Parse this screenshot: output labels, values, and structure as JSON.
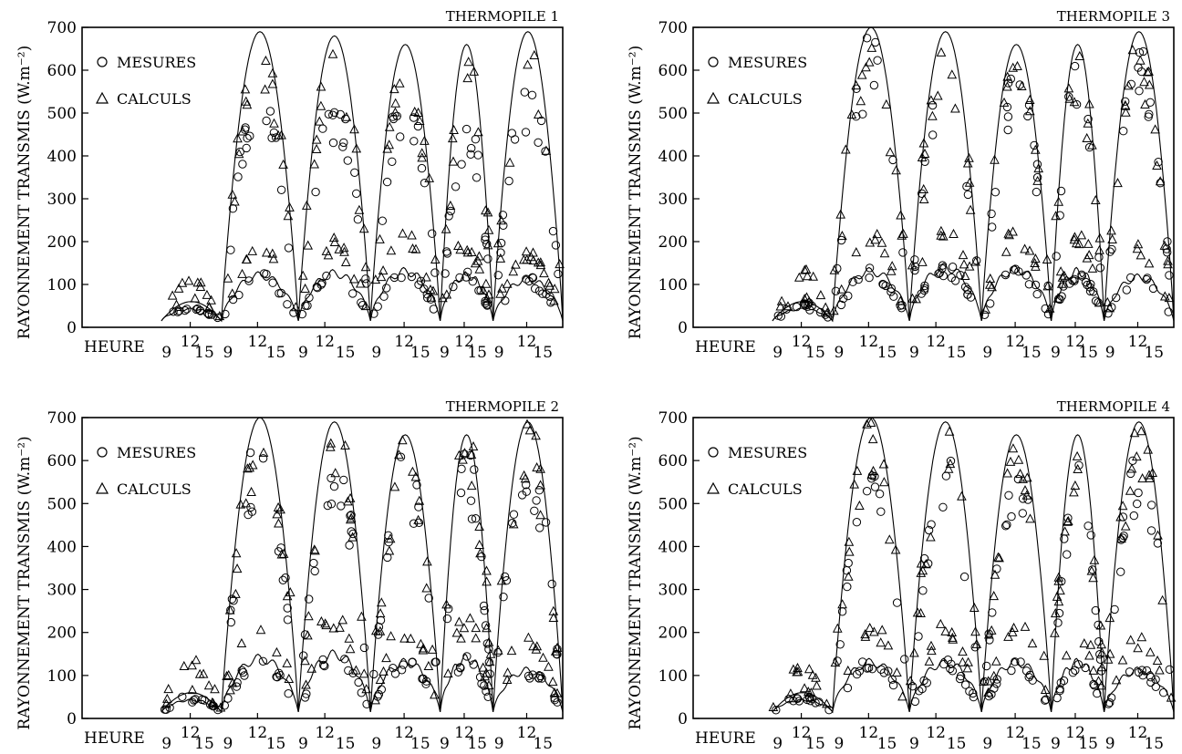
{
  "chart_data": [
    {
      "type": "line",
      "title": "THERMOPILE 1",
      "ylabel": "RAYONNEMENT TRANSMIS (W.m⁻²)",
      "xlabel": "HEURE",
      "ylim": [
        0,
        700
      ],
      "yticks": [
        0,
        100,
        200,
        300,
        400,
        500,
        600,
        700
      ],
      "days": [
        {
          "label": "12",
          "ticks": [
            "9",
            "15"
          ]
        },
        {
          "label": "12",
          "ticks": [
            "9",
            "15"
          ]
        },
        {
          "label": "12",
          "ticks": [
            "9",
            "15"
          ]
        },
        {
          "label": "12",
          "ticks": [
            "9",
            "15"
          ]
        },
        {
          "label": "12",
          "ticks": [
            "9",
            "15"
          ]
        },
        {
          "label": "12",
          "ticks": [
            "9",
            "15"
          ]
        }
      ],
      "legend": {
        "position": "top-left",
        "entries": [
          {
            "marker": "circle",
            "label": "MESURES"
          },
          {
            "marker": "triangle",
            "label": "CALCULS"
          }
        ]
      },
      "day_peaks": [
        60,
        690,
        680,
        660,
        660,
        690
      ],
      "diffuse_peaks": [
        45,
        130,
        135,
        140,
        130,
        120
      ],
      "mesures_peaks": [
        55,
        600,
        560,
        590,
        520,
        600
      ],
      "calculs_peaks": [
        120,
        695,
        680,
        655,
        650,
        680
      ]
    },
    {
      "type": "line",
      "title": "THERMOPILE 3",
      "ylabel": "RAYONNEMENT TRANSMIS (W.m⁻²)",
      "xlabel": "HEURE",
      "ylim": [
        0,
        700
      ],
      "yticks": [
        0,
        100,
        200,
        300,
        400,
        500,
        600,
        700
      ],
      "days": [
        {
          "label": "12",
          "ticks": [
            "9",
            "15"
          ]
        },
        {
          "label": "12",
          "ticks": [
            "9",
            "15"
          ]
        },
        {
          "label": "12",
          "ticks": [
            "9",
            "15"
          ]
        },
        {
          "label": "12",
          "ticks": [
            "9",
            "15"
          ]
        },
        {
          "label": "12",
          "ticks": [
            "9",
            "15"
          ]
        },
        {
          "label": "12",
          "ticks": [
            "9",
            "15"
          ]
        }
      ],
      "legend": {
        "position": "top-left",
        "entries": [
          {
            "marker": "circle",
            "label": "MESURES"
          },
          {
            "marker": "triangle",
            "label": "CALCULS"
          }
        ]
      },
      "day_peaks": [
        60,
        700,
        690,
        660,
        660,
        690
      ],
      "diffuse_peaks": [
        45,
        140,
        150,
        145,
        140,
        125
      ],
      "mesures_peaks": [
        60,
        690,
        670,
        640,
        650,
        670
      ],
      "calculs_peaks": [
        140,
        700,
        690,
        660,
        660,
        690
      ]
    },
    {
      "type": "line",
      "title": "THERMOPILE 2",
      "ylabel": "RAYONNEMENT TRANSMIS (W.m⁻²)",
      "xlabel": "HEURE",
      "ylim": [
        0,
        700
      ],
      "yticks": [
        0,
        100,
        200,
        300,
        400,
        500,
        600,
        700
      ],
      "days": [
        {
          "label": "12",
          "ticks": [
            "9",
            "15"
          ]
        },
        {
          "label": "12",
          "ticks": [
            "9",
            "15"
          ]
        },
        {
          "label": "12",
          "ticks": [
            "9",
            "15"
          ]
        },
        {
          "label": "12",
          "ticks": [
            "9",
            "15"
          ]
        },
        {
          "label": "12",
          "ticks": [
            "9",
            "15"
          ]
        },
        {
          "label": "12",
          "ticks": [
            "9",
            "15"
          ]
        }
      ],
      "legend": {
        "position": "top-left",
        "entries": [
          {
            "marker": "circle",
            "label": "MESURES"
          },
          {
            "marker": "triangle",
            "label": "CALCULS"
          }
        ]
      },
      "day_peaks": [
        60,
        700,
        690,
        660,
        660,
        690
      ],
      "diffuse_peaks": [
        45,
        150,
        160,
        140,
        150,
        120
      ],
      "mesures_peaks": [
        55,
        670,
        650,
        630,
        640,
        660
      ],
      "calculs_peaks": [
        140,
        700,
        690,
        660,
        660,
        690
      ]
    },
    {
      "type": "line",
      "title": "THERMOPILE 4",
      "ylabel": "RAYONNEMENT TRANSMIS (W.m⁻²)",
      "xlabel": "HEURE",
      "ylim": [
        0,
        700
      ],
      "yticks": [
        0,
        100,
        200,
        300,
        400,
        500,
        600,
        700
      ],
      "days": [
        {
          "label": "12",
          "ticks": [
            "9",
            "15"
          ]
        },
        {
          "label": "12",
          "ticks": [
            "9",
            "15"
          ]
        },
        {
          "label": "12",
          "ticks": [
            "9",
            "15"
          ]
        },
        {
          "label": "12",
          "ticks": [
            "9",
            "15"
          ]
        },
        {
          "label": "12",
          "ticks": [
            "9",
            "15"
          ]
        },
        {
          "label": "12",
          "ticks": [
            "9",
            "15"
          ]
        }
      ],
      "legend": {
        "position": "top-left",
        "entries": [
          {
            "marker": "circle",
            "label": "MESURES"
          },
          {
            "marker": "triangle",
            "label": "CALCULS"
          }
        ]
      },
      "day_peaks": [
        60,
        700,
        690,
        660,
        660,
        690
      ],
      "diffuse_peaks": [
        45,
        140,
        140,
        140,
        140,
        120
      ],
      "mesures_peaks": [
        55,
        640,
        620,
        590,
        610,
        630
      ],
      "calculs_peaks": [
        130,
        700,
        690,
        660,
        660,
        690
      ]
    }
  ]
}
